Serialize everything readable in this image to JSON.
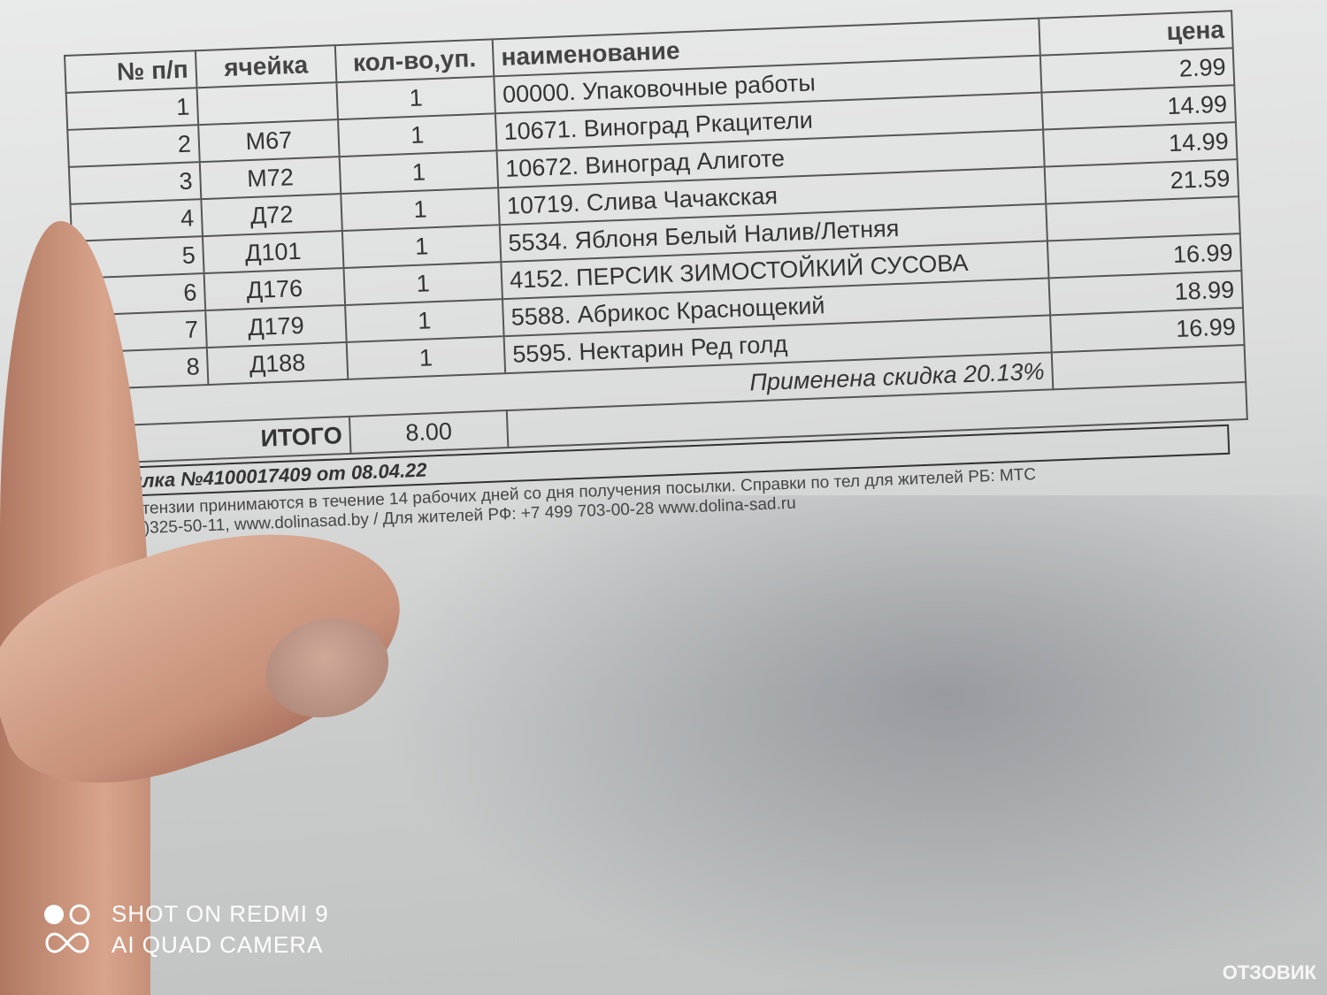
{
  "table": {
    "headers": [
      "№ п/п",
      "ячейка",
      "кол-во,уп.",
      "наименование",
      "цена"
    ],
    "rows": [
      [
        "1",
        "",
        "1",
        "00000. Упаковочные работы",
        "2.99"
      ],
      [
        "2",
        "М67",
        "1",
        "10671. Виноград Ркацители",
        "14.99"
      ],
      [
        "3",
        "М72",
        "1",
        "10672. Виноград Алиготе",
        "14.99"
      ],
      [
        "4",
        "Д72",
        "1",
        "10719. Слива Чачакская",
        "21.59"
      ],
      [
        "5",
        "Д101",
        "1",
        "5534. Яблоня Белый Налив/Летняя",
        ""
      ],
      [
        "6",
        "Д176",
        "1",
        "4152. ПЕРСИК ЗИМОСТОЙКИЙ СУСОВА",
        "16.99"
      ],
      [
        "7",
        "Д179",
        "1",
        "5588. Абрикос Краснощекий",
        "18.99"
      ],
      [
        "8",
        "Д188",
        "1",
        "5595. Нектарин Ред голд",
        "16.99"
      ]
    ],
    "discount": "Применена скидка 20.13%",
    "total_label": "ИТОГО",
    "total_value": "8.00"
  },
  "parcel": "Посылка №4100017409 от 08.04.22",
  "note_line1": "Все претензии принимаются в течение 14 рабочих дней со дня получения посылки. Справки по тел для жителей РБ: МТС",
  "note_line2": "+375(33)325-50-11, www.dolinasad.by / Для жителей РФ: +7 499 703-00-28 www.dolina-sad.ru",
  "watermark": {
    "line1": "SHOT ON REDMI 9",
    "line2": "AI QUAD CAMERA"
  },
  "site_logo": "ОТЗОВИК"
}
